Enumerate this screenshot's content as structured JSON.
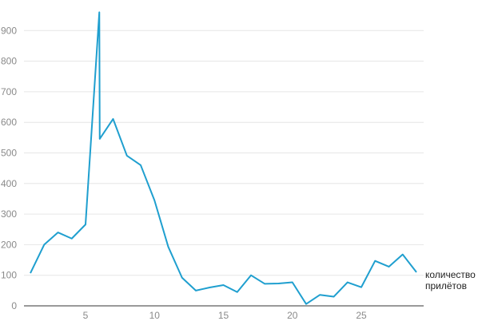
{
  "chart_data": {
    "type": "line",
    "title": "",
    "xlabel": "",
    "ylabel": "",
    "xlim": [
      0.5,
      29.5
    ],
    "ylim": [
      0,
      900
    ],
    "x_ticks": [
      5,
      10,
      15,
      20,
      25
    ],
    "y_ticks": [
      0,
      100,
      200,
      300,
      400,
      500,
      600,
      700,
      800,
      900
    ],
    "grid": true,
    "legend": "right",
    "colors": {
      "line": "#1f9fcf",
      "grid": "#e6e6e6",
      "axis": "#333333",
      "tick_text": "#8a8a8a"
    },
    "series": [
      {
        "name": "количество прилётов",
        "x": [
          1,
          2,
          3,
          4,
          5,
          6,
          6,
          7,
          8,
          9,
          10,
          11,
          12,
          13,
          14,
          15,
          16,
          17,
          18,
          19,
          20,
          21,
          22,
          23,
          24,
          25,
          26,
          27,
          28,
          29
        ],
        "values": [
          107,
          200,
          240,
          220,
          266,
          960,
          546,
          611,
          491,
          460,
          345,
          193,
          92,
          50,
          60,
          68,
          45,
          100,
          72,
          73,
          77,
          6,
          36,
          30,
          77,
          61,
          147,
          128,
          168,
          110
        ]
      }
    ],
    "legend_lines": [
      "количество",
      "прилётов"
    ]
  }
}
